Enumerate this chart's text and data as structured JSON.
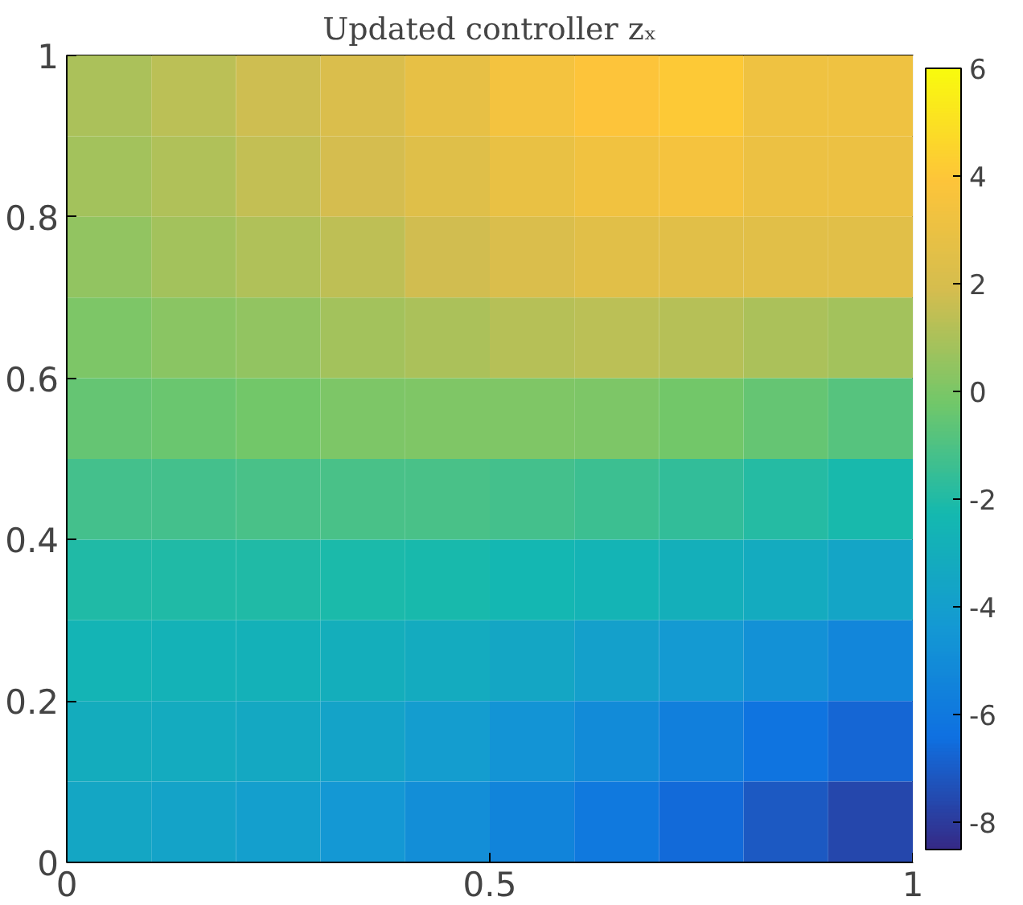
{
  "chart_data": {
    "type": "heatmap",
    "title": "Updated controller zₓ",
    "x": [
      0.05,
      0.15,
      0.25,
      0.35,
      0.45,
      0.55,
      0.65,
      0.75,
      0.85,
      0.95
    ],
    "y": [
      0.95,
      0.85,
      0.75,
      0.65,
      0.55,
      0.45,
      0.35,
      0.25,
      0.15,
      0.05
    ],
    "xlim": [
      0,
      1
    ],
    "ylim": [
      0,
      1
    ],
    "xticks": [
      0,
      0.5,
      1
    ],
    "yticks": [
      0,
      0.2,
      0.4,
      0.6,
      0.8,
      1
    ],
    "clim": [
      -8.5,
      6
    ],
    "cticks": [
      -8,
      -6,
      -4,
      -2,
      0,
      2,
      4,
      6
    ],
    "cells": [
      [
        1,
        1.3,
        1.7,
        2.2,
        2.8,
        3.4,
        3.9,
        4.1,
        3.2,
        3.2
      ],
      [
        0.8,
        1.1,
        1.5,
        1.9,
        2.4,
        2.9,
        3.3,
        3.5,
        3,
        3
      ],
      [
        0.5,
        0.8,
        1.1,
        1.4,
        1.8,
        2.2,
        2.5,
        2.5,
        2.5,
        2.5
      ],
      [
        0,
        0.3,
        0.5,
        0.8,
        1,
        1.2,
        1.3,
        1.2,
        1,
        0.8
      ],
      [
        -0.5,
        -0.4,
        -0.2,
        0,
        0.1,
        0.1,
        0,
        -0.2,
        -0.5,
        -0.8
      ],
      [
        -1.2,
        -1.2,
        -1.1,
        -1.1,
        -1.1,
        -1.2,
        -1.4,
        -1.6,
        -1.9,
        -2.2
      ],
      [
        -2,
        -2,
        -2,
        -2.1,
        -2.2,
        -2.4,
        -2.6,
        -2.9,
        -3.2,
        -3.6
      ],
      [
        -2.6,
        -2.7,
        -2.8,
        -3,
        -3.2,
        -3.5,
        -3.9,
        -4.3,
        -4.8,
        -5.3
      ],
      [
        -3.1,
        -3.2,
        -3.4,
        -3.7,
        -4.1,
        -4.6,
        -5.1,
        -5.7,
        -6.2,
        -6.7
      ],
      [
        -3.5,
        -3.7,
        -4,
        -4.4,
        -4.9,
        -5.4,
        -6,
        -6.6,
        -7.1,
        -7.6
      ]
    ]
  }
}
